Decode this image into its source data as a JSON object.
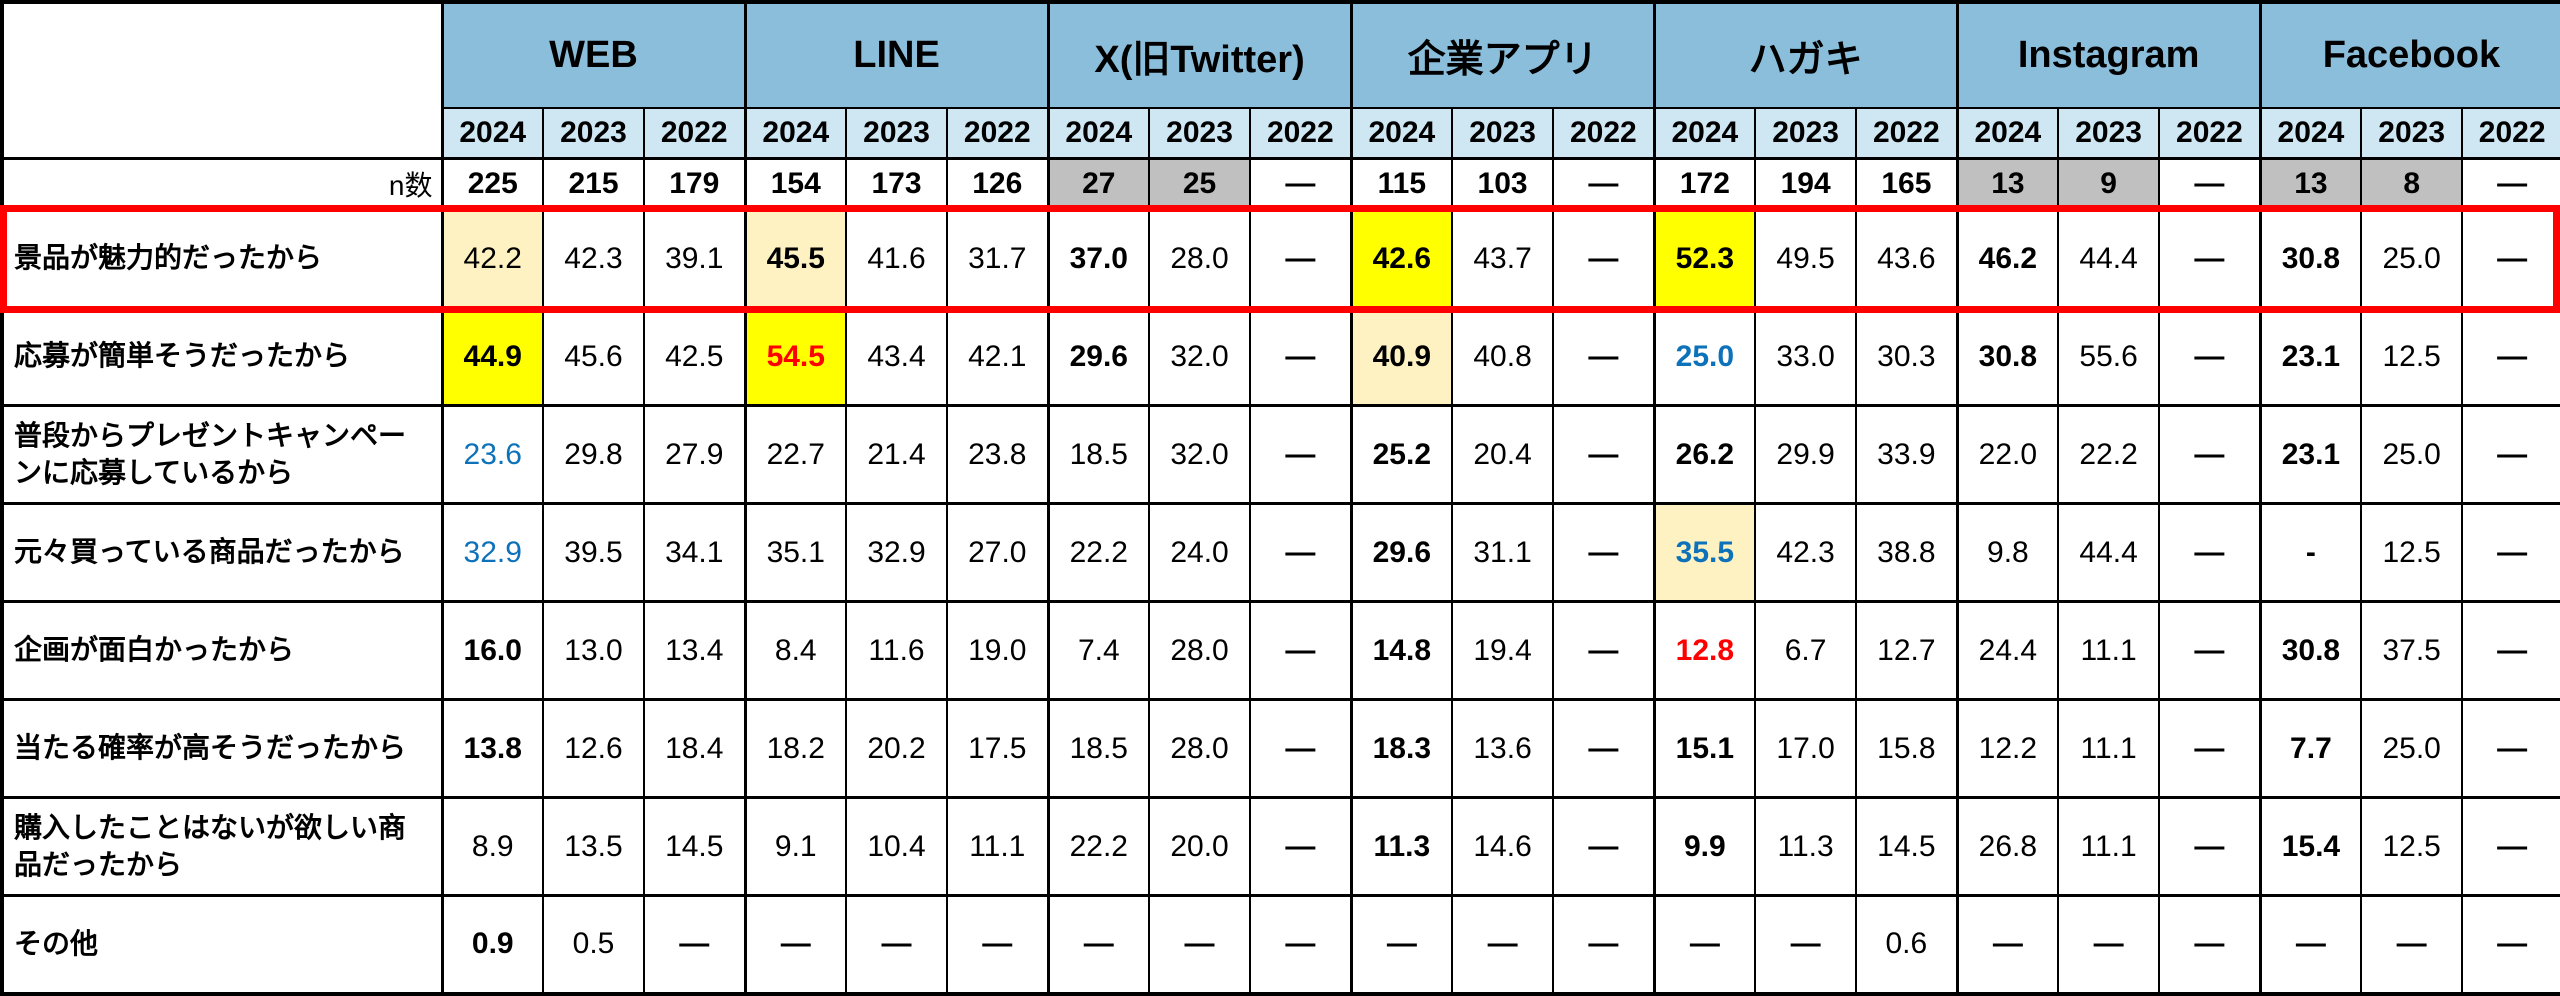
{
  "colors": {
    "header_blue": "#8BBEDB",
    "year_blue": "#CFE6F3",
    "gray": "#C0C0C0",
    "pale_yellow": "#FFF2C2",
    "bright_yellow": "#FFFF00",
    "red_text": "#FF0000",
    "blue_text": "#0D72B9",
    "frame_red": "#FF0000",
    "border_black": "#000000"
  },
  "flag_legend": "b=bold, p=pale-yellow-bg, y=yellow-bg, g=gray-bg, r=red-text, u=blue-text",
  "chart_data": {
    "type": "table",
    "groups": [
      {
        "label": "WEB"
      },
      {
        "label": "LINE"
      },
      {
        "label": "X(旧Twitter)"
      },
      {
        "label": "企業アプリ"
      },
      {
        "label": "ハガキ"
      },
      {
        "label": "Instagram"
      },
      {
        "label": "Facebook"
      }
    ],
    "years": [
      "2024",
      "2023",
      "2022"
    ],
    "n_label": "n数",
    "n_values": [
      [
        "225",
        "b"
      ],
      [
        "215",
        "b"
      ],
      [
        "179",
        "b"
      ],
      [
        "154",
        "b"
      ],
      [
        "173",
        "b"
      ],
      [
        "126",
        "b"
      ],
      [
        "27",
        "bg"
      ],
      [
        "25",
        "bg"
      ],
      [
        "—",
        "b"
      ],
      [
        "115",
        "b"
      ],
      [
        "103",
        "b"
      ],
      [
        "—",
        "b"
      ],
      [
        "172",
        "b"
      ],
      [
        "194",
        "b"
      ],
      [
        "165",
        "b"
      ],
      [
        "13",
        "bg"
      ],
      [
        "9",
        "bg"
      ],
      [
        "—",
        "b"
      ],
      [
        "13",
        "bg"
      ],
      [
        "8",
        "bg"
      ],
      [
        "—",
        "b"
      ]
    ],
    "rows": [
      {
        "label": "景品が魅力的だったから",
        "highlighted": true,
        "cells": [
          [
            "42.2",
            "p"
          ],
          [
            "42.3",
            ""
          ],
          [
            "39.1",
            ""
          ],
          [
            "45.5",
            "pb"
          ],
          [
            "41.6",
            ""
          ],
          [
            "31.7",
            ""
          ],
          [
            "37.0",
            "b"
          ],
          [
            "28.0",
            ""
          ],
          [
            "—",
            "b"
          ],
          [
            "42.6",
            "yb"
          ],
          [
            "43.7",
            ""
          ],
          [
            "—",
            "b"
          ],
          [
            "52.3",
            "yb"
          ],
          [
            "49.5",
            ""
          ],
          [
            "43.6",
            ""
          ],
          [
            "46.2",
            "b"
          ],
          [
            "44.4",
            ""
          ],
          [
            "—",
            "b"
          ],
          [
            "30.8",
            "b"
          ],
          [
            "25.0",
            ""
          ],
          [
            "—",
            "b"
          ]
        ]
      },
      {
        "label": "応募が簡単そうだったから",
        "highlighted": false,
        "cells": [
          [
            "44.9",
            "yb"
          ],
          [
            "45.6",
            ""
          ],
          [
            "42.5",
            ""
          ],
          [
            "54.5",
            "ybr"
          ],
          [
            "43.4",
            ""
          ],
          [
            "42.1",
            ""
          ],
          [
            "29.6",
            "b"
          ],
          [
            "32.0",
            ""
          ],
          [
            "—",
            "b"
          ],
          [
            "40.9",
            "pb"
          ],
          [
            "40.8",
            ""
          ],
          [
            "—",
            "b"
          ],
          [
            "25.0",
            "bu"
          ],
          [
            "33.0",
            ""
          ],
          [
            "30.3",
            ""
          ],
          [
            "30.8",
            "b"
          ],
          [
            "55.6",
            ""
          ],
          [
            "—",
            "b"
          ],
          [
            "23.1",
            "b"
          ],
          [
            "12.5",
            ""
          ],
          [
            "—",
            "b"
          ]
        ]
      },
      {
        "label": "普段からプレゼントキャンペーンに応募しているから",
        "highlighted": false,
        "cells": [
          [
            "23.6",
            "u"
          ],
          [
            "29.8",
            ""
          ],
          [
            "27.9",
            ""
          ],
          [
            "22.7",
            ""
          ],
          [
            "21.4",
            ""
          ],
          [
            "23.8",
            ""
          ],
          [
            "18.5",
            ""
          ],
          [
            "32.0",
            ""
          ],
          [
            "—",
            "b"
          ],
          [
            "25.2",
            "b"
          ],
          [
            "20.4",
            ""
          ],
          [
            "—",
            "b"
          ],
          [
            "26.2",
            "b"
          ],
          [
            "29.9",
            ""
          ],
          [
            "33.9",
            ""
          ],
          [
            "22.0",
            ""
          ],
          [
            "22.2",
            ""
          ],
          [
            "—",
            "b"
          ],
          [
            "23.1",
            "b"
          ],
          [
            "25.0",
            ""
          ],
          [
            "—",
            "b"
          ]
        ]
      },
      {
        "label": "元々買っている商品だったから",
        "highlighted": false,
        "cells": [
          [
            "32.9",
            "u"
          ],
          [
            "39.5",
            ""
          ],
          [
            "34.1",
            ""
          ],
          [
            "35.1",
            ""
          ],
          [
            "32.9",
            ""
          ],
          [
            "27.0",
            ""
          ],
          [
            "22.2",
            ""
          ],
          [
            "24.0",
            ""
          ],
          [
            "—",
            "b"
          ],
          [
            "29.6",
            "b"
          ],
          [
            "31.1",
            ""
          ],
          [
            "—",
            "b"
          ],
          [
            "35.5",
            "pbu"
          ],
          [
            "42.3",
            ""
          ],
          [
            "38.8",
            ""
          ],
          [
            "9.8",
            ""
          ],
          [
            "44.4",
            ""
          ],
          [
            "—",
            "b"
          ],
          [
            "-",
            "b"
          ],
          [
            "12.5",
            ""
          ],
          [
            "—",
            "b"
          ]
        ]
      },
      {
        "label": "企画が面白かったから",
        "highlighted": false,
        "cells": [
          [
            "16.0",
            "b"
          ],
          [
            "13.0",
            ""
          ],
          [
            "13.4",
            ""
          ],
          [
            "8.4",
            ""
          ],
          [
            "11.6",
            ""
          ],
          [
            "19.0",
            ""
          ],
          [
            "7.4",
            ""
          ],
          [
            "28.0",
            ""
          ],
          [
            "—",
            "b"
          ],
          [
            "14.8",
            "b"
          ],
          [
            "19.4",
            ""
          ],
          [
            "—",
            "b"
          ],
          [
            "12.8",
            "br"
          ],
          [
            "6.7",
            ""
          ],
          [
            "12.7",
            ""
          ],
          [
            "24.4",
            ""
          ],
          [
            "11.1",
            ""
          ],
          [
            "—",
            "b"
          ],
          [
            "30.8",
            "b"
          ],
          [
            "37.5",
            ""
          ],
          [
            "—",
            "b"
          ]
        ]
      },
      {
        "label": "当たる確率が高そうだったから",
        "highlighted": false,
        "cells": [
          [
            "13.8",
            "b"
          ],
          [
            "12.6",
            ""
          ],
          [
            "18.4",
            ""
          ],
          [
            "18.2",
            ""
          ],
          [
            "20.2",
            ""
          ],
          [
            "17.5",
            ""
          ],
          [
            "18.5",
            ""
          ],
          [
            "28.0",
            ""
          ],
          [
            "—",
            "b"
          ],
          [
            "18.3",
            "b"
          ],
          [
            "13.6",
            ""
          ],
          [
            "—",
            "b"
          ],
          [
            "15.1",
            "b"
          ],
          [
            "17.0",
            ""
          ],
          [
            "15.8",
            ""
          ],
          [
            "12.2",
            ""
          ],
          [
            "11.1",
            ""
          ],
          [
            "—",
            "b"
          ],
          [
            "7.7",
            "b"
          ],
          [
            "25.0",
            ""
          ],
          [
            "—",
            "b"
          ]
        ]
      },
      {
        "label": "購入したことはないが欲しい商品だったから",
        "highlighted": false,
        "cells": [
          [
            "8.9",
            ""
          ],
          [
            "13.5",
            ""
          ],
          [
            "14.5",
            ""
          ],
          [
            "9.1",
            ""
          ],
          [
            "10.4",
            ""
          ],
          [
            "11.1",
            ""
          ],
          [
            "22.2",
            ""
          ],
          [
            "20.0",
            ""
          ],
          [
            "—",
            "b"
          ],
          [
            "11.3",
            "b"
          ],
          [
            "14.6",
            ""
          ],
          [
            "—",
            "b"
          ],
          [
            "9.9",
            "b"
          ],
          [
            "11.3",
            ""
          ],
          [
            "14.5",
            ""
          ],
          [
            "26.8",
            ""
          ],
          [
            "11.1",
            ""
          ],
          [
            "—",
            "b"
          ],
          [
            "15.4",
            "b"
          ],
          [
            "12.5",
            ""
          ],
          [
            "—",
            "b"
          ]
        ]
      },
      {
        "label": "その他",
        "highlighted": false,
        "cells": [
          [
            "0.9",
            "b"
          ],
          [
            "0.5",
            ""
          ],
          [
            "—",
            "b"
          ],
          [
            "—",
            "b"
          ],
          [
            "—",
            "b"
          ],
          [
            "—",
            "b"
          ],
          [
            "—",
            "b"
          ],
          [
            "—",
            "b"
          ],
          [
            "—",
            "b"
          ],
          [
            "—",
            "b"
          ],
          [
            "—",
            "b"
          ],
          [
            "—",
            "b"
          ],
          [
            "—",
            "b"
          ],
          [
            "—",
            "b"
          ],
          [
            "0.6",
            ""
          ],
          [
            "—",
            "b"
          ],
          [
            "—",
            "b"
          ],
          [
            "—",
            "b"
          ],
          [
            "—",
            "b"
          ],
          [
            "—",
            "b"
          ],
          [
            "—",
            "b"
          ]
        ]
      }
    ]
  }
}
